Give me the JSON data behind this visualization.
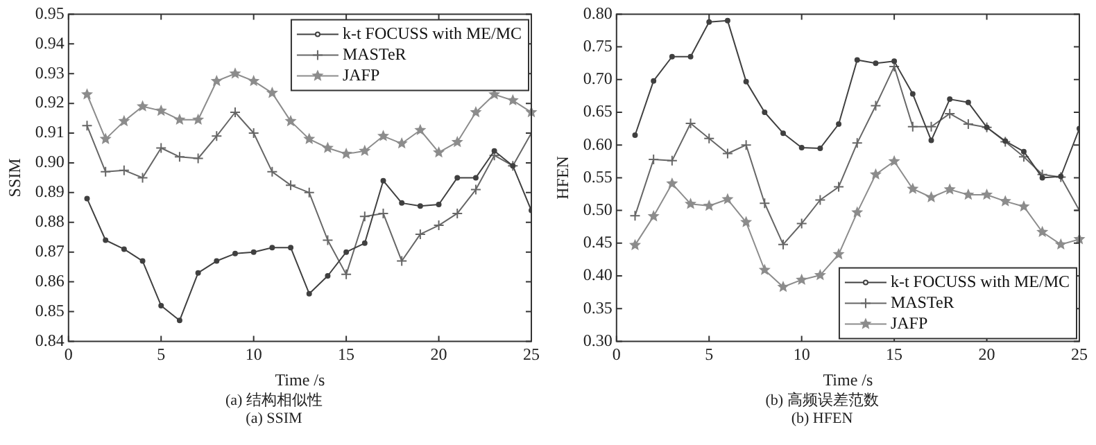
{
  "chart_data": [
    {
      "type": "line",
      "xlabel": "Time /s",
      "ylabel": "SSIM",
      "annotations": [
        "(a) 结构相似性",
        "(a) SSIM"
      ],
      "x": [
        1,
        2,
        3,
        4,
        5,
        6,
        7,
        8,
        9,
        10,
        11,
        12,
        13,
        14,
        15,
        16,
        17,
        18,
        19,
        20,
        21,
        22,
        23,
        24,
        25
      ],
      "xlim": [
        0,
        25
      ],
      "xticks": [
        0,
        5,
        10,
        15,
        20,
        25
      ],
      "ylim": [
        0.84,
        0.95
      ],
      "yticks": [
        0.84,
        0.85,
        0.86,
        0.87,
        0.88,
        0.89,
        {
          "value": 0.9,
          "label": "0.90"
        },
        0.91,
        0.92,
        0.93,
        0.94,
        0.95
      ],
      "grid": false,
      "legend": "top right",
      "line_style": "solid",
      "series": [
        {
          "name": "k-t FOCUSS with ME/MC",
          "color": "#404040",
          "marker": "circle",
          "values": [
            0.888,
            0.874,
            0.871,
            0.867,
            0.852,
            0.847,
            0.863,
            0.867,
            0.8695,
            0.87,
            0.8715,
            0.8715,
            0.856,
            0.862,
            0.87,
            0.873,
            0.894,
            0.8865,
            0.8855,
            0.886,
            0.895,
            0.895,
            0.904,
            0.899,
            0.884
          ]
        },
        {
          "name": "MASTeR",
          "color": "#666666",
          "marker": "cross",
          "values": [
            0.9125,
            0.897,
            0.8975,
            0.895,
            0.905,
            0.902,
            0.9015,
            0.909,
            0.917,
            0.91,
            0.897,
            0.8925,
            0.89,
            0.874,
            0.8625,
            0.882,
            0.883,
            0.867,
            0.876,
            0.879,
            0.883,
            0.891,
            0.9025,
            0.899,
            0.91
          ]
        },
        {
          "name": "JAFP",
          "color": "#8c8c8c",
          "marker": "star",
          "values": [
            0.923,
            0.908,
            0.914,
            0.919,
            0.9175,
            0.9145,
            0.9145,
            0.9275,
            0.93,
            0.9275,
            0.9235,
            0.914,
            0.908,
            0.905,
            0.903,
            0.904,
            0.909,
            0.9065,
            0.911,
            0.9035,
            0.907,
            0.917,
            0.923,
            0.921,
            0.917
          ]
        }
      ]
    },
    {
      "type": "line",
      "xlabel": "Time /s",
      "ylabel": "HFEN",
      "annotations": [
        "(b) 高频误差范数",
        "(b) HFEN"
      ],
      "x": [
        1,
        2,
        3,
        4,
        5,
        6,
        7,
        8,
        9,
        10,
        11,
        12,
        13,
        14,
        15,
        16,
        17,
        18,
        19,
        20,
        21,
        22,
        23,
        24,
        25
      ],
      "xlim": [
        0,
        25
      ],
      "xticks": [
        0,
        5,
        10,
        15,
        20,
        25
      ],
      "ylim": [
        0.3,
        0.8
      ],
      "yticks": [
        {
          "value": 0.3,
          "label": "0.30"
        },
        0.35,
        {
          "value": 0.4,
          "label": "0.40"
        },
        0.45,
        {
          "value": 0.5,
          "label": "0.50"
        },
        0.55,
        {
          "value": 0.6,
          "label": "0.60"
        },
        0.65,
        {
          "value": 0.7,
          "label": "0.70"
        },
        0.75,
        {
          "value": 0.8,
          "label": "0.80"
        }
      ],
      "grid": false,
      "legend": "bottom right",
      "line_style": "solid",
      "series": [
        {
          "name": "k-t FOCUSS with ME/MC",
          "color": "#404040",
          "marker": "circle",
          "values": [
            0.615,
            0.698,
            0.735,
            0.735,
            0.788,
            0.79,
            0.697,
            0.65,
            0.618,
            0.596,
            0.595,
            0.632,
            0.73,
            0.725,
            0.728,
            0.678,
            0.607,
            0.67,
            0.665,
            0.627,
            0.606,
            0.59,
            0.55,
            0.552,
            0.625
          ]
        },
        {
          "name": "MASTeR",
          "color": "#666666",
          "marker": "cross",
          "values": [
            0.492,
            0.578,
            0.576,
            0.633,
            0.61,
            0.587,
            0.6,
            0.511,
            0.448,
            0.48,
            0.516,
            0.536,
            0.603,
            0.66,
            0.72,
            0.628,
            0.628,
            0.648,
            0.632,
            0.627,
            0.605,
            0.582,
            0.555,
            0.551,
            0.5
          ]
        },
        {
          "name": "JAFP",
          "color": "#8c8c8c",
          "marker": "star",
          "values": [
            0.447,
            0.491,
            0.541,
            0.51,
            0.507,
            0.517,
            0.482,
            0.409,
            0.383,
            0.394,
            0.401,
            0.433,
            0.497,
            0.555,
            0.575,
            0.533,
            0.52,
            0.532,
            0.524,
            0.524,
            0.514,
            0.506,
            0.467,
            0.448,
            0.456
          ]
        }
      ]
    }
  ]
}
